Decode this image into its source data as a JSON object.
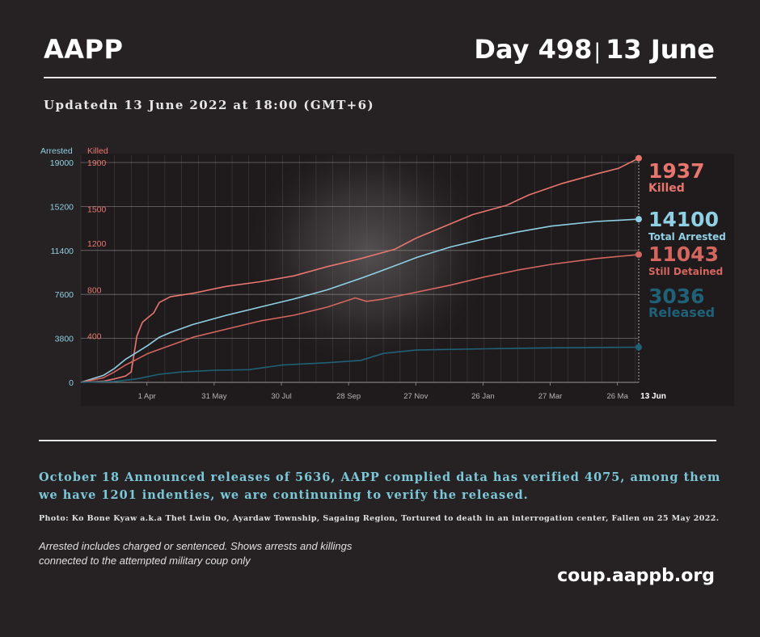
{
  "header": {
    "org": "AAPP",
    "day": "Day 498",
    "separator": "|",
    "date": "13 June"
  },
  "updated": "Updatedn 13 June 2022 at 18:00 (GMT+6)",
  "colors": {
    "killed": "#e8766f",
    "arrested": "#8fd0e4",
    "detained": "#d4665f",
    "released": "#1f6278",
    "grid": "#5e5a5b",
    "background": "#262223"
  },
  "chart_data": {
    "type": "line",
    "axis_labels": {
      "left_outer": "Arrested",
      "left_inner": "Killed"
    },
    "arrested_axis": {
      "ticks": [
        "19000",
        "15200",
        "11400",
        "7600",
        "3800",
        "0"
      ],
      "ylim": [
        0,
        19000
      ]
    },
    "killed_axis": {
      "ticks": [
        "1900",
        "1500",
        "1200",
        "800",
        "400"
      ],
      "ylim": [
        0,
        1900
      ]
    },
    "x_days_range": [
      0,
      498
    ],
    "x_ticks": [
      {
        "label": "1 Apr",
        "day": 59
      },
      {
        "label": "31 May",
        "day": 119
      },
      {
        "label": "30 Jul",
        "day": 179
      },
      {
        "label": "28 Sep",
        "day": 239
      },
      {
        "label": "27 Nov",
        "day": 299
      },
      {
        "label": "26 Jan",
        "day": 359
      },
      {
        "label": "27 Mar",
        "day": 419
      },
      {
        "label": "26 Ma",
        "day": 479
      }
    ],
    "end_label": "13 Jun",
    "series": [
      {
        "key": "killed",
        "axis": "killed",
        "value_label": "1937",
        "name": "Killed",
        "points": [
          [
            0,
            0
          ],
          [
            20,
            10
          ],
          [
            30,
            30
          ],
          [
            40,
            55
          ],
          [
            45,
            90
          ],
          [
            50,
            400
          ],
          [
            55,
            520
          ],
          [
            60,
            560
          ],
          [
            65,
            600
          ],
          [
            70,
            690
          ],
          [
            80,
            740
          ],
          [
            100,
            770
          ],
          [
            130,
            830
          ],
          [
            160,
            870
          ],
          [
            190,
            920
          ],
          [
            220,
            1000
          ],
          [
            250,
            1070
          ],
          [
            280,
            1150
          ],
          [
            300,
            1250
          ],
          [
            320,
            1330
          ],
          [
            350,
            1450
          ],
          [
            380,
            1530
          ],
          [
            400,
            1620
          ],
          [
            430,
            1720
          ],
          [
            460,
            1800
          ],
          [
            480,
            1850
          ],
          [
            498,
            1937
          ]
        ]
      },
      {
        "key": "arrested",
        "axis": "arrested",
        "value_label": "14100",
        "name": "Total Arrested",
        "points": [
          [
            0,
            0
          ],
          [
            20,
            600
          ],
          [
            30,
            1200
          ],
          [
            40,
            2000
          ],
          [
            50,
            2600
          ],
          [
            60,
            3200
          ],
          [
            70,
            3900
          ],
          [
            80,
            4300
          ],
          [
            100,
            5000
          ],
          [
            130,
            5800
          ],
          [
            160,
            6500
          ],
          [
            190,
            7200
          ],
          [
            220,
            8000
          ],
          [
            250,
            9000
          ],
          [
            270,
            9700
          ],
          [
            300,
            10800
          ],
          [
            330,
            11700
          ],
          [
            360,
            12400
          ],
          [
            390,
            13000
          ],
          [
            420,
            13500
          ],
          [
            460,
            13900
          ],
          [
            498,
            14100
          ]
        ]
      },
      {
        "key": "detained",
        "axis": "arrested",
        "value_label": "11043",
        "name": "Still Detained",
        "points": [
          [
            0,
            0
          ],
          [
            20,
            400
          ],
          [
            30,
            900
          ],
          [
            40,
            1500
          ],
          [
            50,
            2000
          ],
          [
            60,
            2500
          ],
          [
            80,
            3200
          ],
          [
            100,
            3900
          ],
          [
            130,
            4600
          ],
          [
            160,
            5300
          ],
          [
            190,
            5800
          ],
          [
            220,
            6500
          ],
          [
            245,
            7300
          ],
          [
            255,
            7000
          ],
          [
            270,
            7200
          ],
          [
            300,
            7800
          ],
          [
            330,
            8400
          ],
          [
            360,
            9100
          ],
          [
            390,
            9700
          ],
          [
            420,
            10200
          ],
          [
            460,
            10700
          ],
          [
            498,
            11043
          ]
        ]
      },
      {
        "key": "released",
        "axis": "arrested",
        "value_label": "3036",
        "name": "Released",
        "points": [
          [
            0,
            0
          ],
          [
            30,
            80
          ],
          [
            50,
            300
          ],
          [
            70,
            700
          ],
          [
            90,
            900
          ],
          [
            120,
            1050
          ],
          [
            150,
            1100
          ],
          [
            180,
            1500
          ],
          [
            220,
            1700
          ],
          [
            250,
            1900
          ],
          [
            270,
            2500
          ],
          [
            300,
            2800
          ],
          [
            360,
            2900
          ],
          [
            420,
            2980
          ],
          [
            498,
            3036
          ]
        ]
      }
    ]
  },
  "note": "October 18 Announced releases of 5636, AAPP complied data has verified 4075, among them we have 1201 indenties, we are continuning to verify the released.",
  "photo_credit": "Photo:  Ko Bone Kyaw a.k.a Thet Lwin Oo, Ayardaw Township, Sagaing Region, Tortured to death in an interrogation center, Fallen on 25 May 2022.",
  "footnote_line1": "Arrested includes charged or sentenced. Shows arrests and killings",
  "footnote_line2": "connected to the attempted military coup only",
  "website": "coup.aappb.org"
}
